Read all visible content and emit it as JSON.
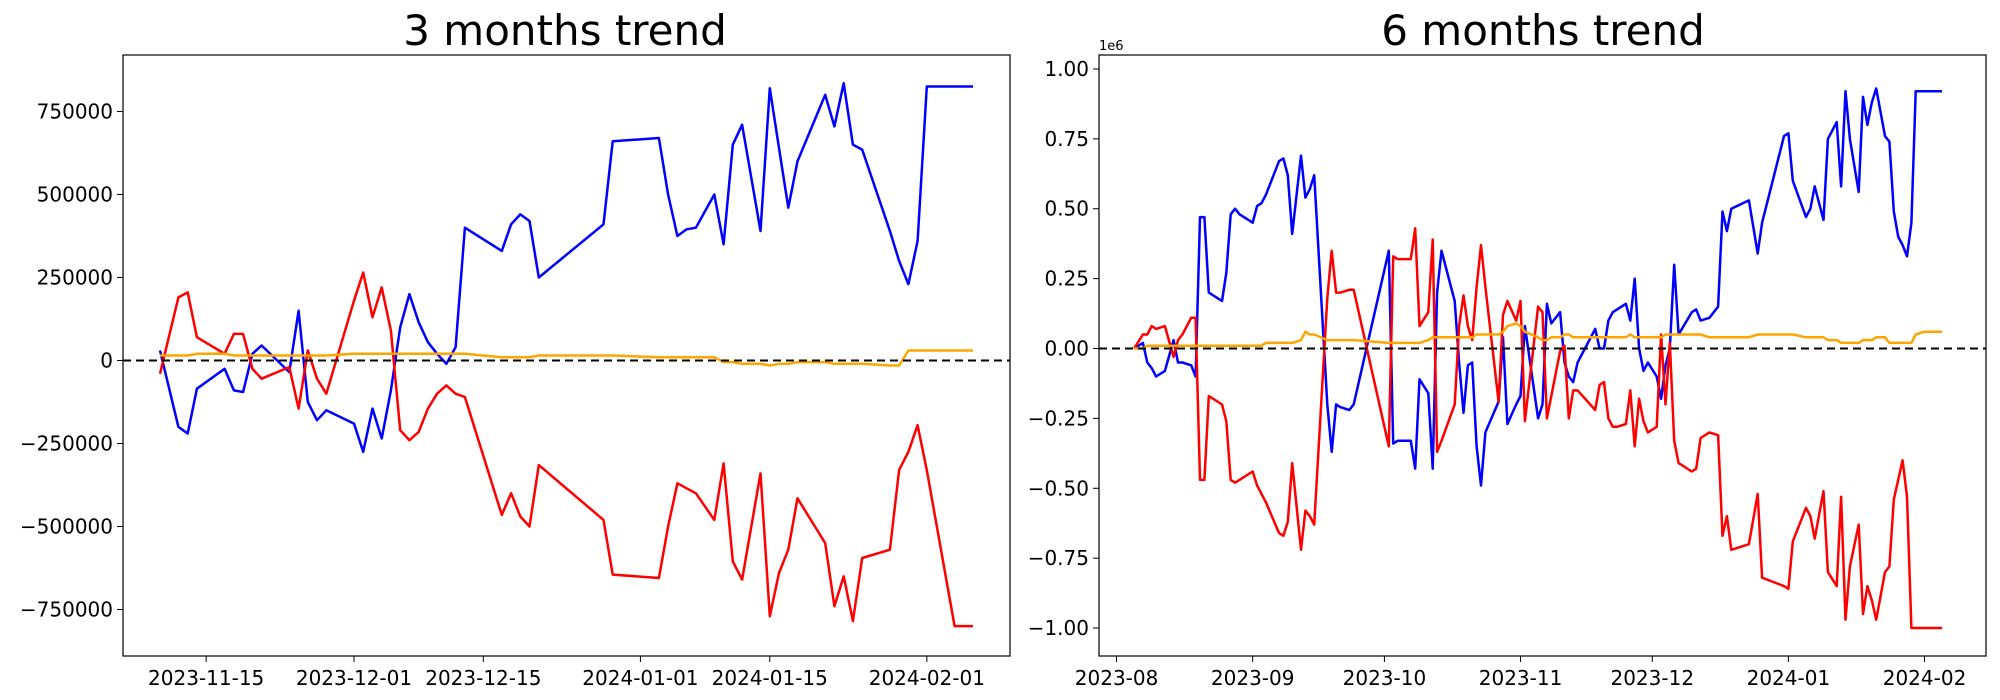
{
  "chart_data": [
    {
      "type": "line",
      "title": "3 months trend",
      "xlabel": "",
      "ylabel": "",
      "x_ticks": [
        "2023-11-15",
        "2023-12-01",
        "2023-12-15",
        "2024-01-01",
        "2024-01-15",
        "2024-02-01"
      ],
      "y_ticks": [
        "−750000",
        "−500000",
        "−250000",
        "0",
        "250000",
        "500000",
        "750000"
      ],
      "xlim": [
        "2023-11-06",
        "2024-02-10"
      ],
      "ylim": [
        -890000,
        920000
      ],
      "reference_line": {
        "y": 0,
        "style": "dashed",
        "color": "#000000"
      },
      "grid": false,
      "x": [
        "2023-11-10",
        "2023-11-12",
        "2023-11-13",
        "2023-11-14",
        "2023-11-17",
        "2023-11-18",
        "2023-11-19",
        "2023-11-20",
        "2023-11-21",
        "2023-11-24",
        "2023-11-25",
        "2023-11-26",
        "2023-11-27",
        "2023-11-28",
        "2023-12-01",
        "2023-12-02",
        "2023-12-03",
        "2023-12-04",
        "2023-12-05",
        "2023-12-06",
        "2023-12-07",
        "2023-12-08",
        "2023-12-09",
        "2023-12-10",
        "2023-12-11",
        "2023-12-12",
        "2023-12-13",
        "2023-12-17",
        "2023-12-18",
        "2023-12-19",
        "2023-12-20",
        "2023-12-21",
        "2023-12-28",
        "2023-12-29",
        "2024-01-03",
        "2024-01-04",
        "2024-01-05",
        "2024-01-06",
        "2024-01-07",
        "2024-01-09",
        "2024-01-10",
        "2024-01-11",
        "2024-01-12",
        "2024-01-14",
        "2024-01-15",
        "2024-01-16",
        "2024-01-17",
        "2024-01-18",
        "2024-01-21",
        "2024-01-22",
        "2024-01-23",
        "2024-01-24",
        "2024-01-25",
        "2024-01-28",
        "2024-01-29",
        "2024-01-30",
        "2024-01-31",
        "2024-02-01",
        "2024-02-04",
        "2024-02-05",
        "2024-02-06"
      ],
      "series": [
        {
          "color": "#0000ff",
          "values": [
            30000,
            -200000,
            -220000,
            -85000,
            -25000,
            -90000,
            -95000,
            20000,
            45000,
            -35000,
            150000,
            -125000,
            -180000,
            -150000,
            -190000,
            -275000,
            -145000,
            -235000,
            -90000,
            100000,
            200000,
            115000,
            55000,
            20000,
            -10000,
            40000,
            400000,
            330000,
            410000,
            440000,
            420000,
            250000,
            410000,
            660000,
            670000,
            500000,
            375000,
            395000,
            400000,
            500000,
            350000,
            650000,
            710000,
            390000,
            820000,
            640000,
            460000,
            600000,
            800000,
            705000,
            835000,
            650000,
            635000,
            390000,
            300000,
            230000,
            360000,
            825000,
            825000,
            825000,
            825000
          ]
        },
        {
          "color": "#ff0000",
          "values": [
            -40000,
            190000,
            205000,
            70000,
            20000,
            80000,
            80000,
            -25000,
            -55000,
            -20000,
            -145000,
            30000,
            -55000,
            -100000,
            180000,
            265000,
            130000,
            220000,
            90000,
            -210000,
            -240000,
            -215000,
            -145000,
            -100000,
            -75000,
            -100000,
            -110000,
            -465000,
            -400000,
            -470000,
            -500000,
            -315000,
            -480000,
            -645000,
            -655000,
            -500000,
            -370000,
            -385000,
            -400000,
            -480000,
            -310000,
            -605000,
            -660000,
            -340000,
            -770000,
            -640000,
            -570000,
            -415000,
            -550000,
            -740000,
            -650000,
            -785000,
            -595000,
            -570000,
            -330000,
            -275000,
            -195000,
            -330000,
            -800000,
            -800000,
            -800000
          ]
        },
        {
          "color": "#ffa500",
          "values": [
            15000,
            15000,
            15000,
            20000,
            20000,
            15000,
            15000,
            15000,
            15000,
            15000,
            15000,
            15000,
            15000,
            15000,
            20000,
            20000,
            20000,
            20000,
            20000,
            20000,
            20000,
            20000,
            20000,
            20000,
            20000,
            20000,
            20000,
            10000,
            10000,
            10000,
            10000,
            15000,
            15000,
            15000,
            10000,
            10000,
            10000,
            10000,
            10000,
            10000,
            -5000,
            -5000,
            -10000,
            -10000,
            -15000,
            -10000,
            -10000,
            -5000,
            -5000,
            -10000,
            -10000,
            -10000,
            -10000,
            -15000,
            -15000,
            30000,
            30000,
            30000,
            30000,
            30000,
            30000
          ]
        }
      ]
    },
    {
      "type": "line",
      "title": "6 months trend",
      "xlabel": "",
      "ylabel": "",
      "y_offset_label": "1e6",
      "x_ticks": [
        "2023-08",
        "2023-09",
        "2023-10",
        "2023-11",
        "2023-12",
        "2024-01",
        "2024-02"
      ],
      "y_ticks": [
        "−1.00",
        "−0.75",
        "−0.50",
        "−0.25",
        "0.00",
        "0.25",
        "0.50",
        "0.75",
        "1.00"
      ],
      "xlim": [
        "2023-07-28",
        "2024-02-15"
      ],
      "ylim": [
        -1.1,
        1.05
      ],
      "reference_line": {
        "y": 0,
        "style": "dashed",
        "color": "#000000"
      },
      "grid": false,
      "x": [
        "2023-08-05",
        "2023-08-07",
        "2023-08-08",
        "2023-08-09",
        "2023-08-10",
        "2023-08-12",
        "2023-08-14",
        "2023-08-15",
        "2023-08-16",
        "2023-08-18",
        "2023-08-19",
        "2023-08-20",
        "2023-08-21",
        "2023-08-22",
        "2023-08-25",
        "2023-08-26",
        "2023-08-27",
        "2023-08-28",
        "2023-08-29",
        "2023-08-30",
        "2023-09-01",
        "2023-09-02",
        "2023-09-03",
        "2023-09-04",
        "2023-09-07",
        "2023-09-08",
        "2023-09-09",
        "2023-09-10",
        "2023-09-12",
        "2023-09-13",
        "2023-09-14",
        "2023-09-15",
        "2023-09-18",
        "2023-09-19",
        "2023-09-20",
        "2023-09-21",
        "2023-09-23",
        "2023-09-24",
        "2023-10-02",
        "2023-10-03",
        "2023-10-04",
        "2023-10-07",
        "2023-10-08",
        "2023-10-09",
        "2023-10-11",
        "2023-10-12",
        "2023-10-13",
        "2023-10-14",
        "2023-10-17",
        "2023-10-18",
        "2023-10-19",
        "2023-10-20",
        "2023-10-21",
        "2023-10-22",
        "2023-10-23",
        "2023-10-24",
        "2023-10-27",
        "2023-10-28",
        "2023-10-29",
        "2023-10-31",
        "2023-11-01",
        "2023-11-02",
        "2023-11-05",
        "2023-11-06",
        "2023-11-07",
        "2023-11-08",
        "2023-11-10",
        "2023-11-11",
        "2023-11-12",
        "2023-11-13",
        "2023-11-14",
        "2023-11-18",
        "2023-11-19",
        "2023-11-20",
        "2023-11-21",
        "2023-11-22",
        "2023-11-23",
        "2023-11-25",
        "2023-11-26",
        "2023-11-27",
        "2023-11-28",
        "2023-11-29",
        "2023-11-30",
        "2023-12-02",
        "2023-12-03",
        "2023-12-04",
        "2023-12-05",
        "2023-12-06",
        "2023-12-07",
        "2023-12-10",
        "2023-12-11",
        "2023-12-12",
        "2023-12-14",
        "2023-12-16",
        "2023-12-17",
        "2023-12-18",
        "2023-12-19",
        "2023-12-23",
        "2023-12-25",
        "2023-12-26",
        "2023-12-31",
        "2024-01-01",
        "2024-01-02",
        "2024-01-05",
        "2024-01-06",
        "2024-01-07",
        "2024-01-09",
        "2024-01-10",
        "2024-01-12",
        "2024-01-13",
        "2024-01-14",
        "2024-01-15",
        "2024-01-17",
        "2024-01-18",
        "2024-01-19",
        "2024-01-20",
        "2024-01-21",
        "2024-01-23",
        "2024-01-24",
        "2024-01-25",
        "2024-01-26",
        "2024-01-27",
        "2024-01-28",
        "2024-01-29",
        "2024-01-30",
        "2024-02-01",
        "2024-02-02",
        "2024-02-03",
        "2024-02-04",
        "2024-02-05"
      ],
      "series": [
        {
          "color": "#0000ff",
          "values": [
            0.0,
            0.02,
            -0.05,
            -0.07,
            -0.1,
            -0.08,
            0.03,
            -0.05,
            -0.05,
            -0.06,
            -0.1,
            0.47,
            0.47,
            0.2,
            0.17,
            0.27,
            0.48,
            0.5,
            0.48,
            0.47,
            0.45,
            0.51,
            0.52,
            0.55,
            0.67,
            0.68,
            0.62,
            0.41,
            0.69,
            0.54,
            0.57,
            0.62,
            -0.2,
            -0.37,
            -0.2,
            -0.21,
            -0.22,
            -0.2,
            0.35,
            -0.34,
            -0.33,
            -0.33,
            -0.43,
            -0.11,
            -0.16,
            -0.43,
            0.2,
            0.35,
            0.17,
            -0.05,
            -0.23,
            -0.06,
            -0.05,
            -0.35,
            -0.49,
            -0.3,
            -0.19,
            0.04,
            -0.27,
            -0.2,
            -0.17,
            0.08,
            -0.25,
            -0.2,
            0.16,
            0.09,
            0.13,
            -0.05,
            -0.1,
            -0.12,
            -0.05,
            0.07,
            0.0,
            0.0,
            0.1,
            0.13,
            0.14,
            0.16,
            0.1,
            0.25,
            0.0,
            -0.08,
            -0.05,
            -0.1,
            -0.18,
            -0.06,
            0.0,
            0.3,
            0.05,
            0.13,
            0.14,
            0.1,
            0.11,
            0.15,
            0.49,
            0.42,
            0.5,
            0.53,
            0.34,
            0.45,
            0.76,
            0.77,
            0.6,
            0.47,
            0.5,
            0.58,
            0.46,
            0.75,
            0.81,
            0.58,
            0.92,
            0.75,
            0.56,
            0.9,
            0.8,
            0.88,
            0.93,
            0.76,
            0.74,
            0.49,
            0.4,
            0.37,
            0.33,
            0.45,
            0.92,
            0.92,
            0.92,
            0.92,
            0.92,
            0.92
          ]
        },
        {
          "color": "#ff0000",
          "values": [
            0.0,
            0.05,
            0.05,
            0.08,
            0.07,
            0.08,
            -0.03,
            0.03,
            0.05,
            0.11,
            0.11,
            -0.47,
            -0.47,
            -0.17,
            -0.2,
            -0.26,
            -0.47,
            -0.48,
            -0.47,
            -0.46,
            -0.44,
            -0.49,
            -0.52,
            -0.55,
            -0.66,
            -0.67,
            -0.62,
            -0.41,
            -0.72,
            -0.58,
            -0.6,
            -0.63,
            0.18,
            0.35,
            0.2,
            0.2,
            0.21,
            0.21,
            -0.35,
            0.33,
            0.32,
            0.32,
            0.43,
            0.08,
            0.13,
            0.39,
            -0.37,
            -0.33,
            -0.2,
            0.08,
            0.19,
            0.08,
            0.03,
            0.22,
            0.37,
            0.22,
            -0.19,
            0.12,
            0.17,
            0.1,
            0.17,
            -0.26,
            0.15,
            0.13,
            -0.25,
            -0.17,
            -0.01,
            0.01,
            -0.25,
            -0.15,
            -0.15,
            -0.22,
            -0.13,
            -0.12,
            -0.25,
            -0.28,
            -0.28,
            -0.27,
            -0.15,
            -0.35,
            -0.18,
            -0.26,
            -0.3,
            -0.28,
            0.05,
            -0.2,
            0.02,
            -0.33,
            -0.41,
            -0.44,
            -0.43,
            -0.32,
            -0.3,
            -0.31,
            -0.67,
            -0.6,
            -0.72,
            -0.7,
            -0.52,
            -0.82,
            -0.85,
            -0.86,
            -0.69,
            -0.57,
            -0.6,
            -0.68,
            -0.51,
            -0.8,
            -0.85,
            -0.53,
            -0.97,
            -0.78,
            -0.63,
            -0.95,
            -0.85,
            -0.9,
            -0.97,
            -0.8,
            -0.78,
            -0.54,
            -0.47,
            -0.4,
            -0.53,
            -1.0,
            -1.0,
            -1.0,
            -1.0,
            -1.0,
            -1.0,
            -1.0
          ]
        },
        {
          "color": "#ffa500",
          "values": [
            0.0,
            0.0,
            0.01,
            0.01,
            0.01,
            0.01,
            0.01,
            0.01,
            0.01,
            0.01,
            0.01,
            0.01,
            0.01,
            0.01,
            0.01,
            0.01,
            0.01,
            0.01,
            0.01,
            0.01,
            0.01,
            0.01,
            0.01,
            0.02,
            0.02,
            0.02,
            0.02,
            0.02,
            0.03,
            0.06,
            0.05,
            0.05,
            0.03,
            0.03,
            0.03,
            0.03,
            0.03,
            0.03,
            0.02,
            0.02,
            0.02,
            0.02,
            0.02,
            0.02,
            0.03,
            0.04,
            0.04,
            0.04,
            0.04,
            0.04,
            0.04,
            0.04,
            0.04,
            0.05,
            0.05,
            0.05,
            0.05,
            0.06,
            0.08,
            0.09,
            0.08,
            0.06,
            0.04,
            0.03,
            0.03,
            0.04,
            0.04,
            0.05,
            0.05,
            0.04,
            0.04,
            0.04,
            0.04,
            0.04,
            0.04,
            0.04,
            0.04,
            0.04,
            0.05,
            0.04,
            0.04,
            0.04,
            0.04,
            0.04,
            0.04,
            0.05,
            0.05,
            0.05,
            0.05,
            0.05,
            0.05,
            0.05,
            0.04,
            0.04,
            0.04,
            0.04,
            0.04,
            0.04,
            0.05,
            0.05,
            0.05,
            0.05,
            0.05,
            0.04,
            0.04,
            0.04,
            0.04,
            0.03,
            0.03,
            0.02,
            0.02,
            0.02,
            0.02,
            0.03,
            0.03,
            0.03,
            0.04,
            0.04,
            0.02,
            0.02,
            0.02,
            0.02,
            0.02,
            0.02,
            0.05,
            0.06,
            0.06,
            0.06,
            0.06,
            0.06
          ]
        }
      ]
    }
  ]
}
